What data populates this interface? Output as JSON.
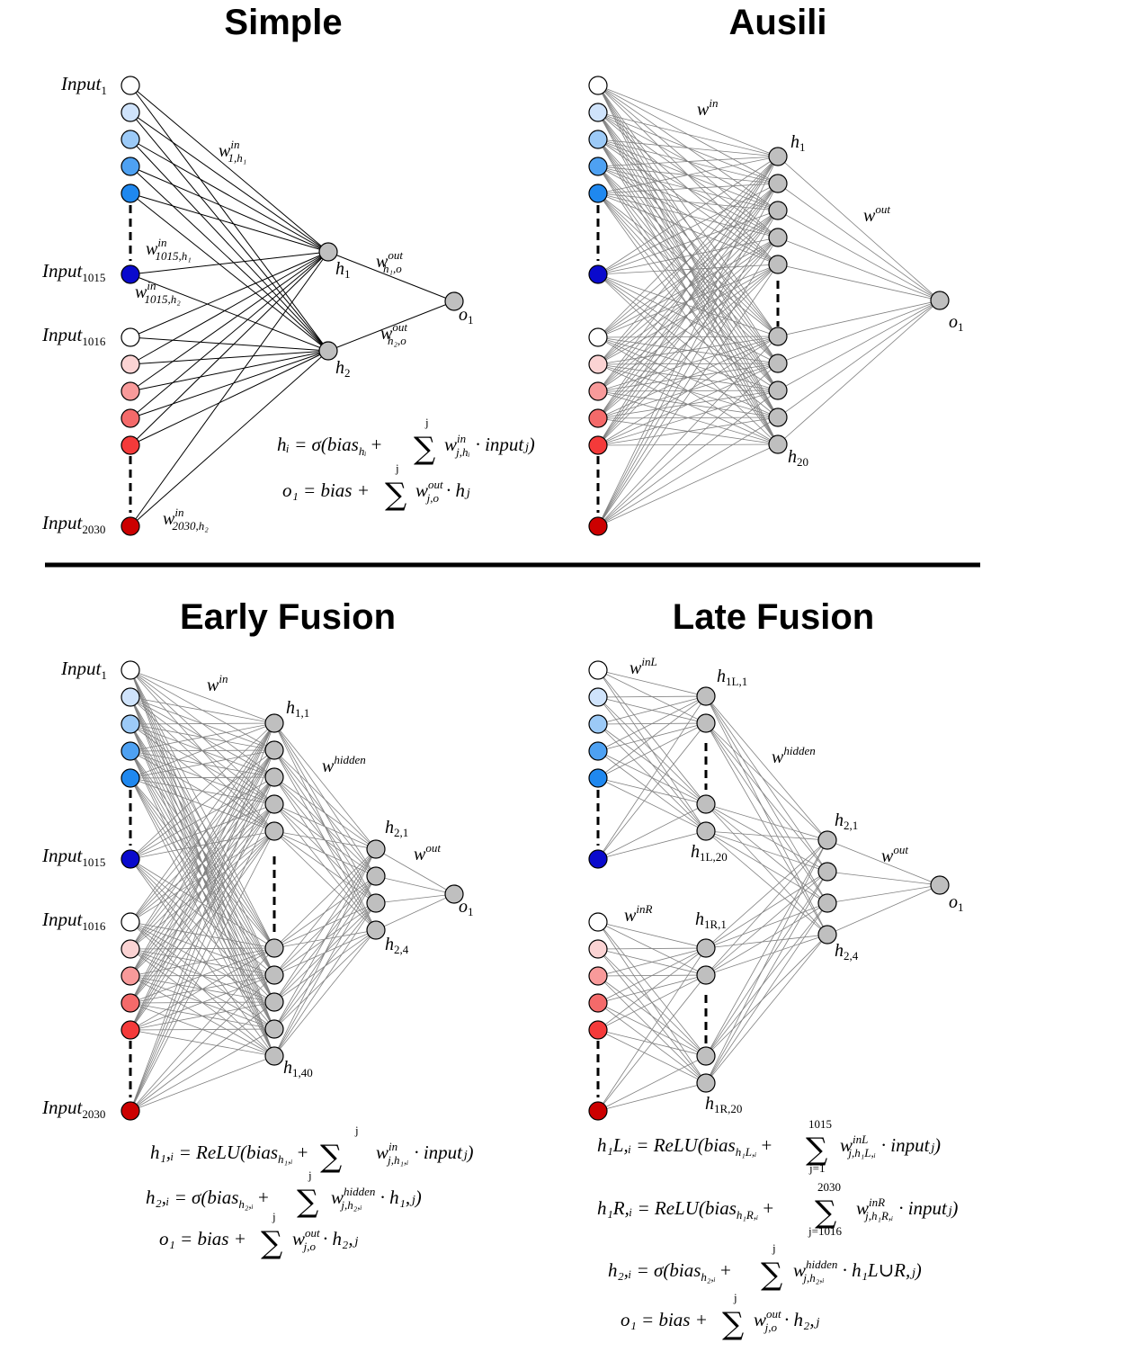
{
  "panels": [
    {
      "id": "simple",
      "title": "Simple",
      "input_labels": [
        "Input",
        "Input",
        "Input",
        "Input"
      ],
      "input_label_subs": [
        "1",
        "1015",
        "1016",
        "2030"
      ],
      "hidden_labels": [
        "h",
        "h"
      ],
      "hidden_label_subs": [
        "1",
        "2"
      ],
      "output_label": "o",
      "output_label_sub": "1",
      "weight_labels": [
        {
          "base": "w",
          "sup": "in",
          "sub": "1,h₁"
        },
        {
          "base": "w",
          "sup": "in",
          "sub": "1015,h₁"
        },
        {
          "base": "w",
          "sup": "in",
          "sub": "1015,h₂"
        },
        {
          "base": "w",
          "sup": "in",
          "sub": "2030,h₂"
        },
        {
          "base": "w",
          "sup": "out",
          "sub": "h₁,o"
        },
        {
          "base": "w",
          "sup": "out",
          "sub": "h₂,o"
        }
      ],
      "equations": [
        {
          "lhs": "hᵢ = σ(bias",
          "lhs_sub": "hᵢ",
          "sum_top": "j",
          "term": "w",
          "term_sup": "in",
          "term_sub": "j,hᵢ",
          "rest": "· inputⱼ)"
        },
        {
          "lhs": "o₁ = bias +",
          "lhs_sub": "",
          "sum_top": "j",
          "term": "w",
          "term_sup": "out",
          "term_sub": "j,o",
          "rest": "· hⱼ"
        }
      ]
    },
    {
      "id": "ausili",
      "title": "Ausili",
      "hidden_labels": [
        "h",
        "h"
      ],
      "hidden_label_subs": [
        "1",
        "20"
      ],
      "output_label": "o",
      "output_label_sub": "1",
      "weight_labels": [
        {
          "base": "w",
          "sup": "in",
          "sub": ""
        },
        {
          "base": "w",
          "sup": "out",
          "sub": ""
        }
      ]
    },
    {
      "id": "early",
      "title": "Early Fusion",
      "input_labels": [
        "Input",
        "Input",
        "Input",
        "Input"
      ],
      "input_label_subs": [
        "1",
        "1015",
        "1016",
        "2030"
      ],
      "hidden_labels": [
        "h",
        "h",
        "h",
        "h"
      ],
      "hidden_label_subs": [
        "1,1",
        "1,40",
        "2,1",
        "2,4"
      ],
      "output_label": "o",
      "output_label_sub": "1",
      "weight_labels": [
        {
          "base": "w",
          "sup": "in",
          "sub": ""
        },
        {
          "base": "w",
          "sup": "hidden",
          "sub": ""
        },
        {
          "base": "w",
          "sup": "out",
          "sub": ""
        }
      ],
      "equations": [
        {
          "lhs": "h₁,ᵢ = ReLU(bias",
          "lhs_sub": "h₁,ᵢ",
          "sum_top": "j",
          "term": "w",
          "term_sup": "in",
          "term_sub": "j,h₁,ᵢ",
          "rest": "· inputⱼ)"
        },
        {
          "lhs": "h₂,ᵢ = σ(bias",
          "lhs_sub": "h₂,ᵢ",
          "sum_top": "j",
          "term": "w",
          "term_sup": "hidden",
          "term_sub": "j,h₂,ᵢ",
          "rest": "· h₁,ⱼ)"
        },
        {
          "lhs": "o₁ = bias +",
          "lhs_sub": "",
          "sum_top": "j",
          "term": "w",
          "term_sup": "out",
          "term_sub": "j,o",
          "rest": "· h₂,ⱼ"
        }
      ]
    },
    {
      "id": "late",
      "title": "Late Fusion",
      "hidden_labels": [
        "h",
        "h",
        "h",
        "h",
        "h",
        "h"
      ],
      "hidden_label_subs": [
        "1L,1",
        "1L,20",
        "1R,1",
        "1R,20",
        "2,1",
        "2,4"
      ],
      "output_label": "o",
      "output_label_sub": "1",
      "weight_labels": [
        {
          "base": "w",
          "sup": "inL",
          "sub": ""
        },
        {
          "base": "w",
          "sup": "inR",
          "sub": ""
        },
        {
          "base": "w",
          "sup": "hidden",
          "sub": ""
        },
        {
          "base": "w",
          "sup": "out",
          "sub": ""
        }
      ],
      "equations": [
        {
          "lhs": "h₁L,ᵢ = ReLU(bias",
          "lhs_sub": "h₁L,ᵢ",
          "sum_top": "1015",
          "sum_bottom": "j=1",
          "term": "w",
          "term_sup": "inL",
          "term_sub": "j,h₁L,ᵢ",
          "rest": "· inputⱼ)"
        },
        {
          "lhs": "h₁R,ᵢ = ReLU(bias",
          "lhs_sub": "h₁R,ᵢ",
          "sum_top": "2030",
          "sum_bottom": "j=1016",
          "term": "w",
          "term_sup": "inR",
          "term_sub": "j,h₁R,ᵢ",
          "rest": "· inputⱼ)"
        },
        {
          "lhs": "h₂,ᵢ = σ(bias",
          "lhs_sub": "h₂,ᵢ",
          "sum_top": "j",
          "term": "w",
          "term_sup": "hidden",
          "term_sub": "j,h₂,ᵢ",
          "rest": "· h₁L∪R,ⱼ)"
        },
        {
          "lhs": "o₁ = bias +",
          "lhs_sub": "",
          "sum_top": "j",
          "term": "w",
          "term_sup": "out",
          "term_sub": "j,o",
          "rest": "· h₂,ⱼ"
        }
      ]
    }
  ],
  "colors": {
    "input_blue": [
      "#ffffff",
      "#cfe3fb",
      "#9ccaf7",
      "#4ea1f2",
      "#1f88ef"
    ],
    "input_blue_last": "#0a0acd",
    "input_red": [
      "#ffffff",
      "#fbd3d3",
      "#f89a9a",
      "#f46a6a",
      "#f43a3a"
    ],
    "input_red_last": "#cc0000",
    "hidden_node": "#bfbfbf",
    "edge": "#808080",
    "stroke": "#000000"
  }
}
